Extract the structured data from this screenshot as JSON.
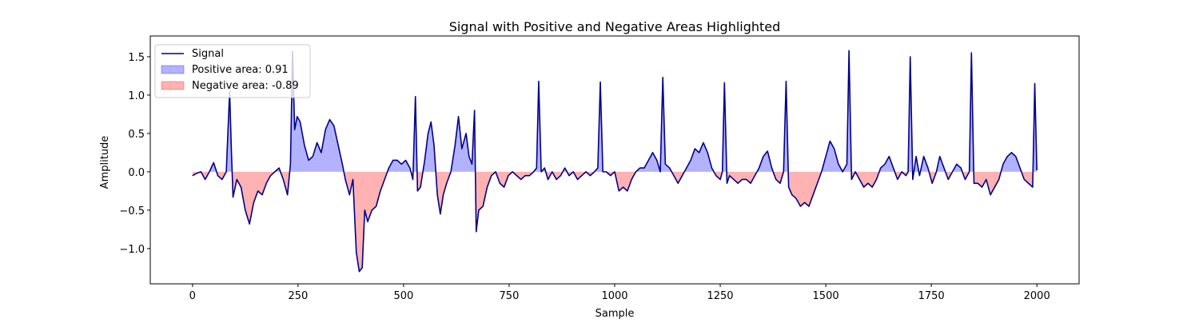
{
  "chart_data": {
    "type": "line",
    "title": "Signal with Positive and Negative Areas Highlighted",
    "xlabel": "Sample",
    "ylabel": "Amplitude",
    "xlim": [
      -100,
      2100
    ],
    "ylim": [
      -1.46,
      1.77
    ],
    "xticks": [
      0,
      250,
      500,
      750,
      1000,
      1250,
      1500,
      1750,
      2000
    ],
    "yticks": [
      {
        "value": -1,
        "label": "−1.0"
      },
      {
        "value": -0.5,
        "label": "−0.5"
      },
      {
        "value": 0,
        "label": "0.0"
      },
      {
        "value": 0.5,
        "label": "0.5"
      },
      {
        "value": 1,
        "label": "1.0"
      },
      {
        "value": 1.5,
        "label": "1.5"
      }
    ],
    "legend": "upper left",
    "x": [
      0,
      10,
      20,
      30,
      40,
      50,
      60,
      70,
      80,
      88,
      92,
      96,
      105,
      115,
      125,
      135,
      145,
      155,
      165,
      175,
      185,
      195,
      205,
      215,
      225,
      232,
      237,
      242,
      248,
      255,
      265,
      275,
      285,
      295,
      305,
      315,
      325,
      335,
      345,
      355,
      362,
      372,
      380,
      388,
      395,
      402,
      408,
      415,
      425,
      435,
      445,
      455,
      465,
      475,
      485,
      495,
      505,
      515,
      522,
      528,
      533,
      540,
      550,
      558,
      565,
      572,
      580,
      587,
      594,
      602,
      612,
      622,
      630,
      638,
      648,
      655,
      662,
      668,
      672,
      678,
      688,
      698,
      708,
      718,
      728,
      738,
      748,
      758,
      768,
      778,
      788,
      798,
      808,
      815,
      820,
      826,
      834,
      842,
      852,
      862,
      872,
      882,
      892,
      902,
      912,
      922,
      932,
      942,
      952,
      960,
      966,
      972,
      980,
      990,
      1000,
      1010,
      1020,
      1030,
      1040,
      1050,
      1060,
      1070,
      1080,
      1090,
      1100,
      1108,
      1114,
      1120,
      1130,
      1140,
      1150,
      1160,
      1170,
      1180,
      1190,
      1200,
      1210,
      1220,
      1230,
      1240,
      1250,
      1255,
      1260,
      1266,
      1272,
      1282,
      1292,
      1302,
      1312,
      1322,
      1332,
      1342,
      1352,
      1362,
      1372,
      1382,
      1392,
      1400,
      1406,
      1412,
      1420,
      1430,
      1440,
      1450,
      1460,
      1470,
      1480,
      1490,
      1500,
      1510,
      1520,
      1530,
      1540,
      1550,
      1555,
      1561,
      1570,
      1580,
      1590,
      1600,
      1610,
      1620,
      1630,
      1640,
      1650,
      1660,
      1670,
      1680,
      1690,
      1695,
      1700,
      1706,
      1714,
      1722,
      1732,
      1742,
      1752,
      1762,
      1770,
      1780,
      1790,
      1800,
      1810,
      1820,
      1830,
      1840,
      1845,
      1851,
      1860,
      1870,
      1880,
      1890,
      1900,
      1910,
      1920,
      1930,
      1940,
      1950,
      1960,
      1970,
      1980,
      1990,
      1995,
      2000
    ],
    "series": [
      {
        "name": "Signal",
        "color": "#00008b",
        "values": [
          -0.05,
          -0.02,
          0.0,
          -0.1,
          0.0,
          0.12,
          -0.05,
          -0.1,
          0.0,
          1.05,
          0.3,
          -0.33,
          -0.1,
          -0.2,
          -0.5,
          -0.68,
          -0.4,
          -0.25,
          -0.3,
          -0.15,
          -0.05,
          0.0,
          0.05,
          -0.1,
          -0.3,
          0.1,
          1.57,
          0.55,
          0.72,
          0.65,
          0.35,
          0.15,
          0.2,
          0.38,
          0.25,
          0.55,
          0.68,
          0.6,
          0.35,
          0.1,
          -0.1,
          -0.3,
          -0.1,
          -1.05,
          -1.3,
          -1.25,
          -0.5,
          -0.65,
          -0.5,
          -0.45,
          -0.25,
          -0.1,
          0.05,
          0.15,
          0.15,
          0.1,
          0.15,
          0.05,
          -0.1,
          0.98,
          -0.25,
          -0.2,
          0.15,
          0.5,
          0.65,
          0.35,
          -0.3,
          -0.55,
          -0.3,
          -0.15,
          0.0,
          0.35,
          0.72,
          0.3,
          0.5,
          0.2,
          0.1,
          0.8,
          -0.78,
          -0.5,
          -0.45,
          -0.2,
          -0.05,
          0.0,
          -0.15,
          -0.2,
          -0.05,
          0.0,
          -0.05,
          -0.1,
          -0.05,
          -0.05,
          0.0,
          0.05,
          1.18,
          0.0,
          0.05,
          -0.1,
          0.0,
          -0.1,
          -0.05,
          0.05,
          -0.05,
          0.0,
          -0.1,
          -0.05,
          0.0,
          -0.05,
          0.0,
          0.05,
          1.17,
          0.0,
          0.0,
          -0.05,
          0.0,
          -0.25,
          -0.2,
          -0.25,
          -0.1,
          0.0,
          0.05,
          0.05,
          0.15,
          0.25,
          0.15,
          0.0,
          1.23,
          0.1,
          0.05,
          -0.05,
          -0.15,
          -0.05,
          0.05,
          0.15,
          0.3,
          0.25,
          0.38,
          0.25,
          0.05,
          -0.05,
          -0.1,
          0.0,
          1.16,
          -0.15,
          -0.05,
          -0.1,
          -0.15,
          -0.1,
          -0.1,
          -0.15,
          -0.05,
          0.05,
          0.2,
          0.27,
          0.05,
          -0.1,
          -0.15,
          0.0,
          1.18,
          -0.2,
          -0.3,
          -0.35,
          -0.45,
          -0.4,
          -0.45,
          -0.3,
          -0.15,
          0.0,
          0.2,
          0.4,
          0.3,
          0.1,
          0.0,
          0.1,
          1.58,
          -0.1,
          0.0,
          -0.1,
          -0.2,
          -0.15,
          -0.2,
          -0.1,
          0.05,
          0.1,
          0.2,
          0.05,
          -0.1,
          0.0,
          -0.05,
          0.0,
          1.5,
          -0.1,
          0.2,
          -0.05,
          0.2,
          0.05,
          -0.15,
          0.0,
          0.2,
          0.05,
          -0.1,
          0.0,
          0.1,
          0.05,
          -0.1,
          0.0,
          1.55,
          -0.15,
          -0.15,
          -0.2,
          -0.1,
          -0.3,
          -0.2,
          -0.1,
          0.1,
          0.2,
          0.25,
          0.2,
          0.05,
          -0.1,
          -0.15,
          -0.2,
          1.15,
          0.02
        ]
      }
    ],
    "fills": [
      {
        "name": "Positive area: 0.91",
        "color": "#0000ff"
      },
      {
        "name": "Negative area: -0.89",
        "color": "#ff0000"
      }
    ]
  }
}
